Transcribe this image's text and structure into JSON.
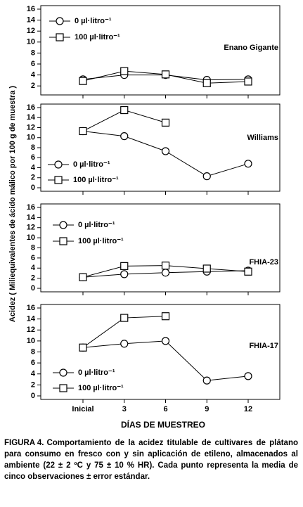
{
  "y_label": "Acidez ( Miliequivalentes de ácido málico por 100 g de muestra )",
  "x_label": "DÍAS DE MUESTREO",
  "caption_label": "FIGURA 4.",
  "caption": "Comportamiento de la acidez titulable de cultivares de plátano para consumo en fresco con y sin aplicación de etileno, almacenados al ambiente (22 ± 2 ºC y 75 ± 10 % HR). Cada punto representa la media de cinco observaciones ± error estándar.",
  "chart_data": [
    {
      "type": "line",
      "annotation": "Enano Gigante",
      "legend": "upper left",
      "categories": [
        "Inicial",
        "3",
        "6",
        "9",
        "12"
      ],
      "series": [
        {
          "name": "0 µl·litro⁻¹",
          "marker": "circle",
          "color": "#000000",
          "values": [
            3.2,
            4.0,
            4.0,
            3.1,
            3.2
          ]
        },
        {
          "name": "100 µl·litro⁻¹",
          "marker": "square",
          "color": "#000000",
          "values": [
            2.9,
            4.7,
            4.1,
            2.5,
            2.8
          ]
        }
      ],
      "ylim": [
        1,
        16
      ],
      "yticks": [
        2,
        4,
        6,
        8,
        10,
        12,
        14,
        16
      ]
    },
    {
      "type": "line",
      "annotation": "Williams",
      "legend": "lower left",
      "categories": [
        "Inicial",
        "3",
        "6",
        "9",
        "12"
      ],
      "series": [
        {
          "name": "0 µl·litro⁻¹",
          "marker": "circle",
          "color": "#000000",
          "values": [
            11.3,
            10.3,
            7.3,
            2.3,
            4.8
          ]
        },
        {
          "name": "100 µl·litro⁻¹",
          "marker": "square",
          "color": "#000000",
          "values": [
            11.3,
            15.5,
            13.0,
            null,
            null
          ]
        }
      ],
      "ylim": [
        0,
        16
      ],
      "yticks": [
        0,
        2,
        4,
        6,
        8,
        10,
        12,
        14,
        16
      ]
    },
    {
      "type": "line",
      "annotation": "FHIA-23",
      "legend": "upper left",
      "categories": [
        "Inicial",
        "3",
        "6",
        "9",
        "12"
      ],
      "series": [
        {
          "name": "0 µl·litro⁻¹",
          "marker": "circle",
          "color": "#000000",
          "values": [
            2.2,
            2.8,
            3.1,
            3.3,
            3.5
          ]
        },
        {
          "name": "100 µl·litro⁻¹",
          "marker": "square",
          "color": "#000000",
          "values": [
            2.2,
            4.4,
            4.5,
            3.9,
            3.3
          ]
        }
      ],
      "ylim": [
        0,
        16
      ],
      "yticks": [
        0,
        2,
        4,
        6,
        8,
        10,
        12,
        14,
        16
      ]
    },
    {
      "type": "line",
      "annotation": "FHIA-17",
      "legend": "lower left",
      "categories": [
        "Inicial",
        "3",
        "6",
        "9",
        "12"
      ],
      "series": [
        {
          "name": "0 µl·litro⁻¹",
          "marker": "circle",
          "color": "#000000",
          "values": [
            8.8,
            9.5,
            10.0,
            2.8,
            3.6
          ]
        },
        {
          "name": "100 µl·litro⁻¹",
          "marker": "square",
          "color": "#000000",
          "values": [
            8.8,
            14.2,
            14.5,
            null,
            null
          ]
        }
      ],
      "ylim": [
        0,
        16
      ],
      "yticks": [
        0,
        2,
        4,
        6,
        8,
        10,
        12,
        14,
        16
      ]
    }
  ]
}
